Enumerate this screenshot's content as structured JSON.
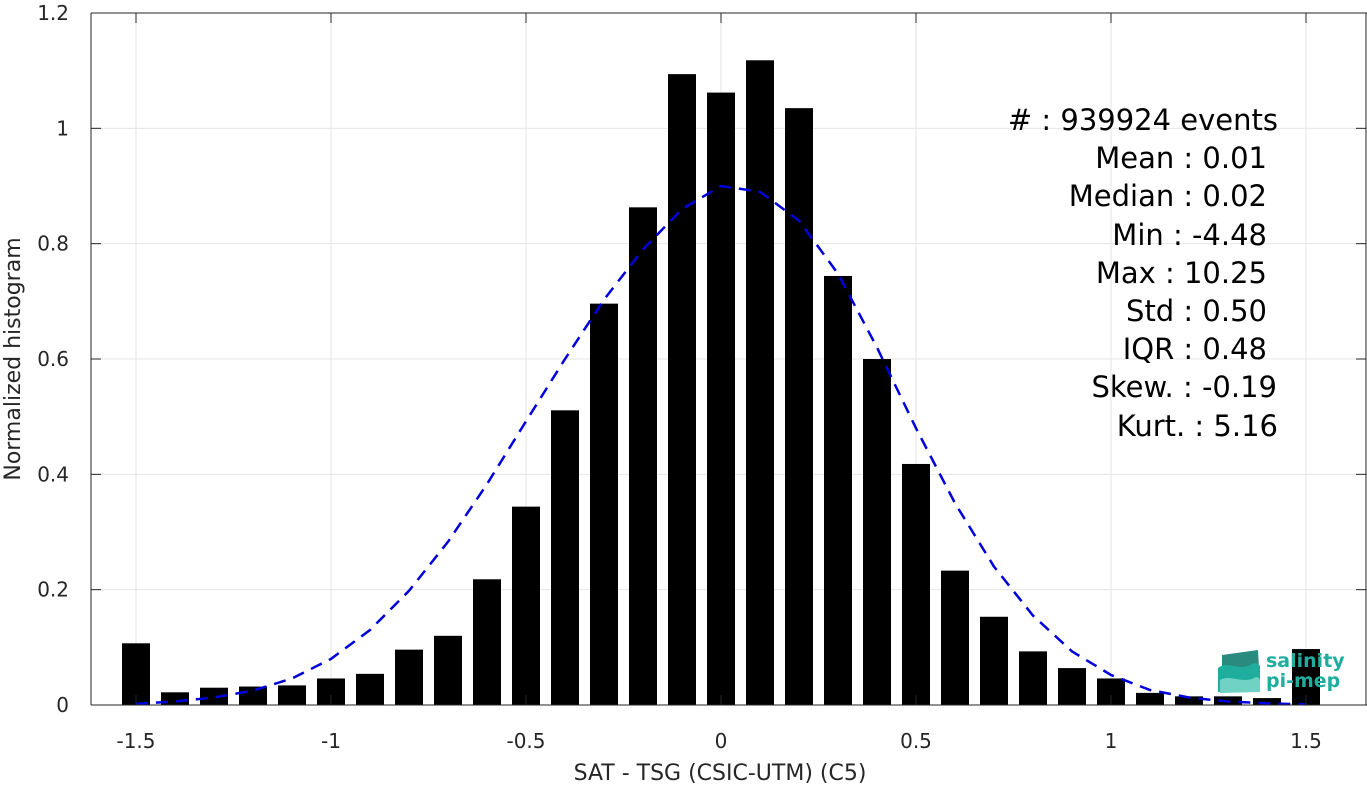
{
  "chart_data": {
    "type": "bar",
    "xlabel": "SAT - TSG (CSIC-UTM) (C5)",
    "ylabel": "Normalized histogram",
    "xlim": [
      -1.6,
      1.6
    ],
    "ylim": [
      0,
      1.2
    ],
    "xticks": [
      -1.5,
      -1,
      -0.5,
      0,
      0.5,
      1,
      1.5
    ],
    "xtick_labels": [
      "-1.5",
      "-1",
      "-0.5",
      "0",
      "0.5",
      "1",
      "1.5"
    ],
    "yticks": [
      0,
      0.2,
      0.4,
      0.6,
      0.8,
      1,
      1.2
    ],
    "ytick_labels": [
      "0",
      "0.2",
      "0.4",
      "0.6",
      "0.8",
      "1",
      "1.2"
    ],
    "grid": true,
    "bin_centers": [
      -1.5,
      -1.4,
      -1.3,
      -1.2,
      -1.1,
      -1.0,
      -0.9,
      -0.8,
      -0.7,
      -0.6,
      -0.5,
      -0.4,
      -0.3,
      -0.2,
      -0.1,
      0.0,
      0.1,
      0.2,
      0.3,
      0.4,
      0.5,
      0.6,
      0.7,
      0.8,
      0.9,
      1.0,
      1.1,
      1.2,
      1.3,
      1.4,
      1.5
    ],
    "values": [
      0.107,
      0.022,
      0.03,
      0.032,
      0.034,
      0.046,
      0.054,
      0.096,
      0.12,
      0.218,
      0.344,
      0.511,
      0.696,
      0.863,
      1.094,
      1.062,
      1.118,
      1.035,
      0.744,
      0.6,
      0.418,
      0.233,
      0.153,
      0.093,
      0.064,
      0.046,
      0.021,
      0.015,
      0.015,
      0.012,
      0.097
    ],
    "bar_color": "#000000",
    "fit_curve": {
      "style": "dashed",
      "color": "#0000dd",
      "x": [
        -1.5,
        -1.4,
        -1.3,
        -1.2,
        -1.1,
        -1.0,
        -0.9,
        -0.8,
        -0.7,
        -0.6,
        -0.5,
        -0.4,
        -0.3,
        -0.2,
        -0.1,
        0.0,
        0.1,
        0.2,
        0.3,
        0.4,
        0.5,
        0.6,
        0.7,
        0.8,
        0.9,
        1.0,
        1.1,
        1.2,
        1.3,
        1.4,
        1.5
      ],
      "y": [
        0.002,
        0.006,
        0.013,
        0.025,
        0.046,
        0.08,
        0.13,
        0.198,
        0.283,
        0.383,
        0.492,
        0.6,
        0.703,
        0.79,
        0.86,
        0.9,
        0.89,
        0.84,
        0.748,
        0.62,
        0.48,
        0.35,
        0.24,
        0.155,
        0.093,
        0.052,
        0.026,
        0.013,
        0.006,
        0.003,
        0.001
      ]
    },
    "stats": [
      "#  : 939924 events",
      "Mean : 0.01",
      "Median : 0.02",
      "Min : -4.48",
      "Max : 10.25",
      "Std : 0.50",
      "IQR : 0.48",
      "Skew. : -0.19",
      "Kurt. : 5.16"
    ]
  },
  "logo": {
    "line1": "salinity",
    "line2": "pi-mep",
    "colors": [
      "#1fae9e",
      "#2a8a80",
      "#6fd2c5"
    ]
  }
}
